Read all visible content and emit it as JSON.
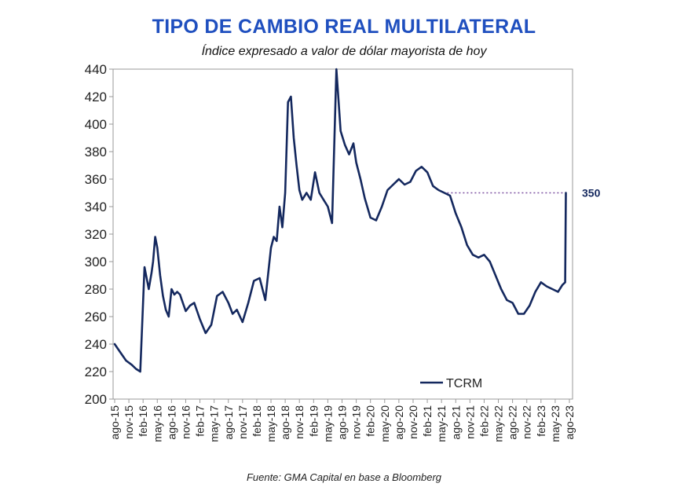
{
  "header": {
    "title": "TIPO DE CAMBIO REAL MULTILATERAL",
    "subtitle": "Índice expresado a valor de dólar mayorista de hoy"
  },
  "footer": {
    "source": "Fuente: GMA Capital en base a Bloomberg"
  },
  "colors": {
    "title": "#1f4fbf",
    "series": "#14285e",
    "reference_line": "#7a4fa0",
    "axis": "#999999"
  },
  "chart_data": {
    "type": "line",
    "title": "TIPO DE CAMBIO REAL MULTILATERAL",
    "subtitle": "Índice expresado a valor de dólar mayorista de hoy",
    "xlabel": "",
    "ylabel": "",
    "ylim": [
      200,
      440
    ],
    "yticks": [
      "200",
      "220",
      "240",
      "260",
      "280",
      "300",
      "320",
      "340",
      "360",
      "380",
      "400",
      "420",
      "440"
    ],
    "xticks": [
      "ago-15",
      "nov-15",
      "feb-16",
      "may-16",
      "ago-16",
      "nov-16",
      "feb-17",
      "may-17",
      "ago-17",
      "nov-17",
      "feb-18",
      "may-18",
      "ago-18",
      "nov-18",
      "feb-19",
      "may-19",
      "ago-19",
      "nov-19",
      "feb-20",
      "may-20",
      "ago-20",
      "nov-20",
      "feb-21",
      "may-21",
      "ago-21",
      "nov-21",
      "feb-22",
      "may-22",
      "ago-22",
      "nov-22",
      "feb-23",
      "may-23",
      "ago-23"
    ],
    "grid": false,
    "legend": "bottom-right",
    "series": [
      {
        "name": "TCRM",
        "x": [
          0,
          0.4,
          0.8,
          1.2,
          1.5,
          1.8,
          2.1,
          2.4,
          2.6,
          2.7,
          2.85,
          3.0,
          3.2,
          3.4,
          3.6,
          3.8,
          4.0,
          4.2,
          4.4,
          4.6,
          4.8,
          5.0,
          5.3,
          5.6,
          6.0,
          6.4,
          6.8,
          7.2,
          7.6,
          8.0,
          8.3,
          8.6,
          9.0,
          9.4,
          9.8,
          10.2,
          10.6,
          11.0,
          11.2,
          11.4,
          11.6,
          11.8,
          12.0,
          12.2,
          12.4,
          12.6,
          12.8,
          13.0,
          13.2,
          13.5,
          13.8,
          14.1,
          14.4,
          14.7,
          15.0,
          15.3,
          15.6,
          15.9,
          16.2,
          16.5,
          16.8,
          17.0,
          17.3,
          17.6,
          18.0,
          18.4,
          18.8,
          19.2,
          19.6,
          20.0,
          20.4,
          20.8,
          21.2,
          21.6,
          22.0,
          22.4,
          22.8,
          23.2,
          23.6,
          24.0,
          24.4,
          24.8,
          25.2,
          25.6,
          26.0,
          26.4,
          26.8,
          27.2,
          27.6,
          28.0,
          28.4,
          28.8,
          29.2,
          29.6,
          30.0,
          30.4,
          30.8,
          31.2,
          31.5,
          31.7,
          31.75
        ],
        "y": [
          240,
          234,
          228,
          225,
          222,
          220,
          296,
          280,
          292,
          300,
          318,
          310,
          290,
          275,
          265,
          260,
          280,
          276,
          278,
          276,
          270,
          264,
          268,
          270,
          258,
          248,
          254,
          275,
          278,
          270,
          262,
          265,
          256,
          270,
          286,
          288,
          272,
          310,
          318,
          315,
          340,
          325,
          350,
          416,
          420,
          390,
          370,
          352,
          345,
          350,
          345,
          365,
          350,
          345,
          340,
          328,
          440,
          395,
          385,
          378,
          386,
          372,
          360,
          346,
          332,
          330,
          340,
          352,
          356,
          360,
          356,
          358,
          366,
          369,
          365,
          355,
          352,
          350,
          348,
          335,
          325,
          312,
          305,
          303,
          305,
          300,
          290,
          280,
          272,
          270,
          262,
          262,
          268,
          278,
          285,
          282,
          280,
          278,
          283,
          285,
          350
        ]
      }
    ],
    "annotations": [
      {
        "text": "350",
        "value": 350,
        "from_x": 23.4,
        "to_x": 31.75,
        "style": "dotted"
      }
    ]
  }
}
